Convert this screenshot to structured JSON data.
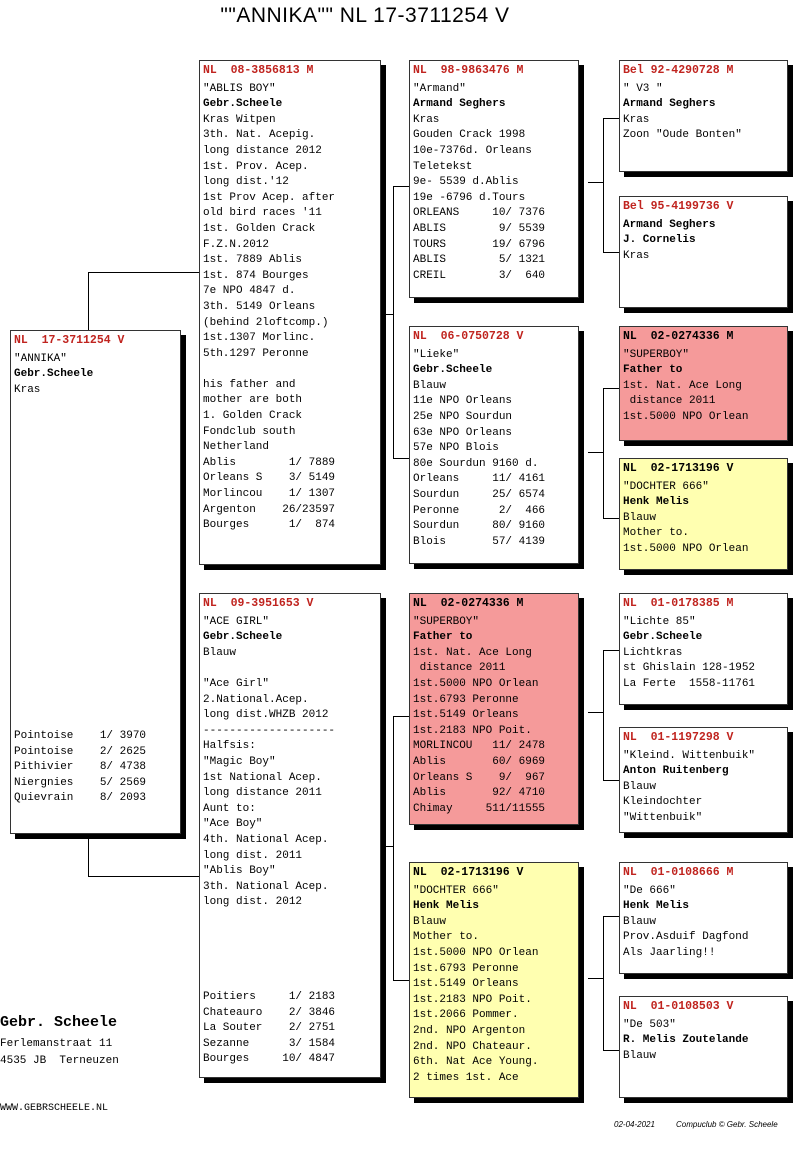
{
  "title": "\"\"ANNIKA\"\"   NL  17-3711254 V",
  "subject": {
    "ring": "NL  17-3711254 V",
    "name": "\"ANNIKA\"",
    "owner": "Gebr.Scheele",
    "lines": [
      "Kras"
    ],
    "results": [
      "Pointoise    1/ 3970",
      "Pointoise    2/ 2625",
      "Pithivier    8/ 4738",
      "Niergnies    5/ 2569",
      "Quievrain    8/ 2093"
    ]
  },
  "sire": {
    "ring": "NL  08-3856813 M",
    "name": "\"ABLIS BOY\"",
    "owner": "Gebr.Scheele",
    "lines": [
      "Kras Witpen",
      "3th. Nat. Acepig.",
      "long distance 2012",
      "1st. Prov. Acep.",
      "long dist.'12",
      "1st Prov Acep. after",
      "old bird races '11",
      "1st. Golden Crack",
      "F.Z.N.2012",
      "1st. 7889 Ablis",
      "1st. 874 Bourges",
      "7e NPO 4847 d.",
      "3th. 5149 Orleans",
      "(behind 2loftcomp.)",
      "1st.1307 Morlinc.",
      "5th.1297 Peronne",
      "",
      "his father and",
      "mother are both",
      "1. Golden Crack",
      "Fondclub south",
      "Netherland",
      "Ablis        1/ 7889",
      "Orleans S    3/ 5149",
      "Morlincou    1/ 1307",
      "Argenton    26/23597",
      "Bourges      1/  874"
    ]
  },
  "dam": {
    "ring": "NL  09-3951653 V",
    "name": "\"ACE GIRL\"",
    "owner": "Gebr.Scheele",
    "lines": [
      "Blauw",
      "",
      "\"Ace Girl\"",
      "2.National.Acep.",
      "long dist.WHZB 2012",
      "--------------------",
      "Halfsis:",
      "\"Magic Boy\"",
      "1st National Acep.",
      "long distance 2011",
      "Aunt to:",
      "\"Ace Boy\"",
      "4th. National Acep.",
      "long dist. 2011",
      "\"Ablis Boy\"",
      "3th. National Acep.",
      "long dist. 2012"
    ],
    "results": [
      "Poitiers     1/ 2183",
      "Chateauro    2/ 3846",
      "La Souter    2/ 2751",
      "Sezanne      3/ 1584",
      "Bourges     10/ 4847"
    ]
  },
  "ss": {
    "ring": "NL  98-9863476 M",
    "name": "\"Armand\"",
    "owner": "Armand Seghers",
    "lines": [
      "Kras",
      "Gouden Crack 1998",
      "10e-7376d. Orleans",
      "Teletekst",
      "9e- 5539 d.Ablis",
      "19e -6796 d.Tours",
      "ORLEANS     10/ 7376",
      "ABLIS        9/ 5539",
      "TOURS       19/ 6796",
      "ABLIS        5/ 1321",
      "CREIL        3/  640"
    ]
  },
  "sd": {
    "ring": "NL  06-0750728 V",
    "name": "\"Lieke\"",
    "owner": "Gebr.Scheele",
    "lines": [
      "Blauw",
      "11e NPO Orleans",
      "25e NPO Sourdun",
      "63e NPO Orleans",
      "57e NPO Blois",
      "80e Sourdun 9160 d.",
      "Orleans     11/ 4161",
      "Sourdun     25/ 6574",
      "Peronne      2/  466",
      "Sourdun     80/ 9160",
      "Blois       57/ 4139"
    ]
  },
  "ds": {
    "ring": "NL  02-0274336 M",
    "name": "\"SUPERBOY\"",
    "owner": "Father to",
    "lines": [
      "1st. Nat. Ace Long",
      " distance 2011",
      "1st.5000 NPO Orlean",
      "1st.6793 Peronne",
      "1st.5149 Orleans",
      "1st.2183 NPO Poit.",
      "MORLINCOU   11/ 2478",
      "Ablis       60/ 6969",
      "Orleans S    9/  967",
      "Ablis       92/ 4710",
      "Chimay     511/11555"
    ]
  },
  "dd": {
    "ring": "NL  02-1713196 V",
    "name": "\"DOCHTER 666\"",
    "owner": "Henk Melis",
    "lines": [
      "Blauw",
      "Mother to.",
      "1st.5000 NPO Orlean",
      "1st.6793 Peronne",
      "1st.5149 Orleans",
      "1st.2183 NPO Poit.",
      "1st.2066 Pommer.",
      "2nd. NPO Argenton",
      "2nd. NPO Chateaur.",
      "6th. Nat Ace Young.",
      "2 times 1st. Ace"
    ]
  },
  "sss": {
    "ring": "Bel 92-4290728 M",
    "name": "\" V3 \"",
    "owner": "Armand Seghers",
    "lines": [
      "Kras",
      "Zoon \"Oude Bonten\""
    ]
  },
  "ssd": {
    "ring": "Bel 95-4199736 V",
    "name": "",
    "owner": "Armand Seghers",
    "lines": [
      "J. Cornelis",
      "Kras"
    ]
  },
  "sds": {
    "ring": "NL  02-0274336 M",
    "name": "\"SUPERBOY\"",
    "owner": "Father to",
    "lines": [
      "1st. Nat. Ace Long",
      " distance 2011",
      "1st.5000 NPO Orlean"
    ]
  },
  "sdd": {
    "ring": "NL  02-1713196 V",
    "name": "\"DOCHTER 666\"",
    "owner": "Henk Melis",
    "lines": [
      "Blauw",
      "Mother to.",
      "1st.5000 NPO Orlean"
    ]
  },
  "dss": {
    "ring": "NL  01-0178385 M",
    "name": "\"Lichte 85\"",
    "owner": "Gebr.Scheele",
    "lines": [
      "Lichtkras",
      "st Ghislain 128-1952",
      "La Ferte  1558-11761"
    ]
  },
  "dsd": {
    "ring": "NL  01-1197298 V",
    "name": "\"Kleind. Wittenbuik\"",
    "owner": "Anton Ruitenberg",
    "lines": [
      "Blauw",
      "Kleindochter",
      "\"Wittenbuik\""
    ]
  },
  "dds": {
    "ring": "NL  01-0108666 M",
    "name": "\"De 666\"",
    "owner": "Henk Melis",
    "lines": [
      "Blauw",
      "Prov.Asduif Dagfond",
      "Als Jaarling!!"
    ]
  },
  "ddd": {
    "ring": "NL  01-0108503 V",
    "name": "\"De 503\"",
    "owner": "R. Melis Zoutelande",
    "lines": [
      "Blauw"
    ]
  },
  "footer": {
    "name": "Gebr.  Scheele",
    "street": "Ferlemanstraat 11",
    "city": "4535 JB  Terneuzen",
    "website": "WWW.GEBRSCHEELE.NL",
    "date": "02-04-2021",
    "credit": "Compuclub © Gebr. Scheele"
  }
}
